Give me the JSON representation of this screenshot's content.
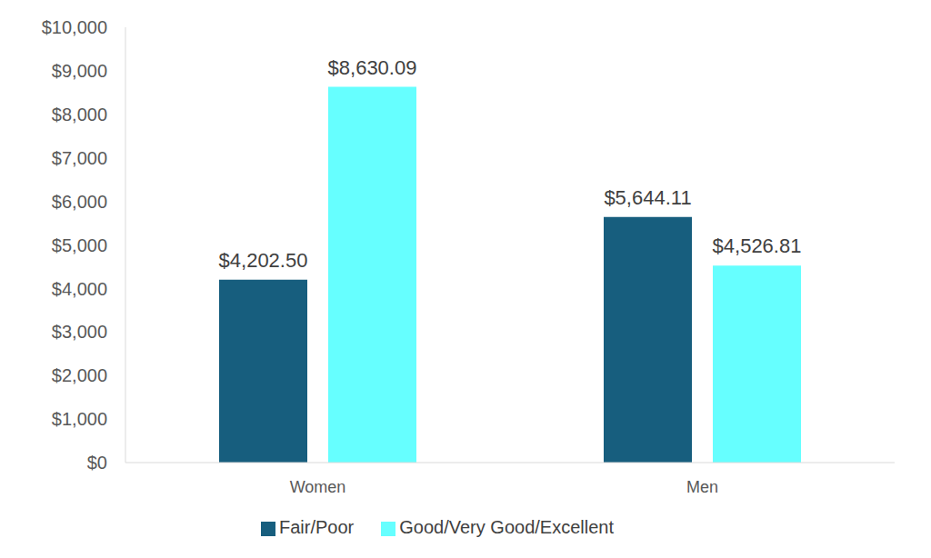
{
  "chart_data": {
    "type": "bar",
    "categories": [
      "Women",
      "Men"
    ],
    "series": [
      {
        "name": "Fair/Poor",
        "color": "#175e7e",
        "values": [
          4202.5,
          5644.11
        ],
        "value_labels": [
          "$4,202.50",
          "$5,644.11"
        ]
      },
      {
        "name": "Good/Very Good/Excellent",
        "color": "#66ffff",
        "values": [
          8630.09,
          4526.81
        ],
        "value_labels": [
          "$8,630.09",
          "$4,526.81"
        ]
      }
    ],
    "ylim": [
      0,
      10000
    ],
    "yticks": [
      {
        "value": 0,
        "label": "$0"
      },
      {
        "value": 1000,
        "label": "$1,000"
      },
      {
        "value": 2000,
        "label": "$2,000"
      },
      {
        "value": 3000,
        "label": "$3,000"
      },
      {
        "value": 4000,
        "label": "$4,000"
      },
      {
        "value": 5000,
        "label": "$5,000"
      },
      {
        "value": 6000,
        "label": "$6,000"
      },
      {
        "value": 7000,
        "label": "$7,000"
      },
      {
        "value": 8000,
        "label": "$8,000"
      },
      {
        "value": 9000,
        "label": "$9,000"
      },
      {
        "value": 10000,
        "label": "$10,000"
      }
    ],
    "grid": false,
    "legend": "bottom",
    "data_labels": true
  }
}
